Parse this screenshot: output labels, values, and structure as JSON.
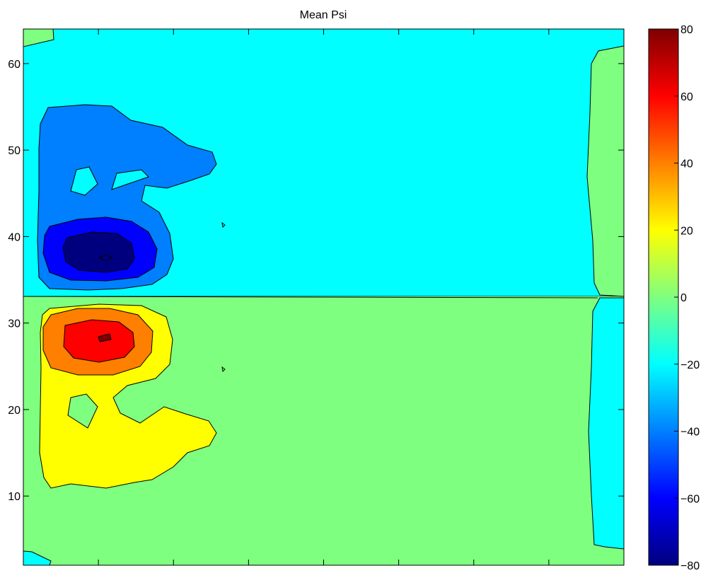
{
  "chart_data": {
    "type": "heatmap",
    "subtype": "filled-contour",
    "title": "Mean Psi",
    "xlabel": "",
    "ylabel": "",
    "ylim": [
      2,
      64
    ],
    "y_ticks": [
      10,
      20,
      30,
      40,
      50,
      60
    ],
    "x_ticks_labeled": false,
    "x_tick_count": 7,
    "colormap": "jet",
    "colorbar": {
      "range": [
        -80,
        80
      ],
      "ticks": [
        80,
        60,
        40,
        20,
        0,
        -20,
        -40,
        -60,
        -80
      ],
      "tick_labels": [
        "80",
        "60",
        "40",
        "20",
        "0",
        "−20",
        "−40",
        "−60",
        "−80"
      ]
    },
    "contour_levels": [
      -80,
      -60,
      -40,
      -20,
      0,
      20,
      40,
      60,
      80
    ],
    "features": [
      {
        "name": "negative-gyre",
        "min_value": -80,
        "center_y": 37
      },
      {
        "name": "positive-gyre",
        "max_value": 80,
        "center_y": 28
      }
    ],
    "colors": {
      "neg80": "#00007f",
      "neg60": "#0000ff",
      "neg40": "#007fff",
      "neg20": "#00ffff",
      "zero": "#7fff7f",
      "pos20": "#ffff00",
      "pos40": "#ff7f00",
      "pos60": "#ff0000",
      "pos80": "#7f0000"
    }
  }
}
